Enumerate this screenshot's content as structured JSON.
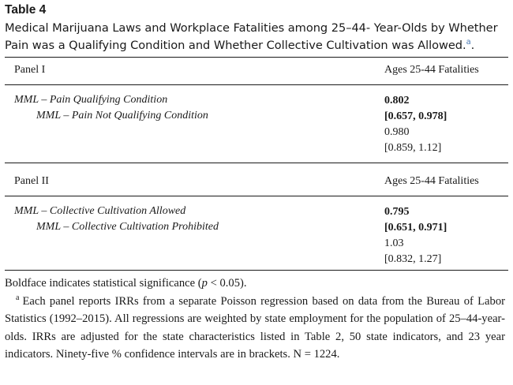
{
  "table": {
    "label": "Table 4",
    "caption_line1": "Medical Marijuana Laws and Workplace Fatalities among 25–44- Year-Olds by Whether",
    "caption_line2": "Pain was a Qualifying Condition and Whether Collective Cultivation was Allowed.",
    "caption_note_marker": "a",
    "caption_end": "."
  },
  "panels": [
    {
      "label": "Panel I",
      "column_header": "Ages 25-44 Fatalities",
      "row1_label": "MML – Pain Qualifying Condition",
      "row2_label": "MML – Pain Not Qualifying Condition",
      "row1_estimate": "0.802",
      "row1_ci": "[0.657, 0.978]",
      "row2_estimate": "0.980",
      "row2_ci": "[0.859, 1.12]"
    },
    {
      "label": "Panel II",
      "column_header": "Ages 25-44 Fatalities",
      "row1_label": "MML – Collective Cultivation Allowed",
      "row2_label": "MML – Collective Cultivation Prohibited",
      "row1_estimate": "0.795",
      "row1_ci": "[0.651, 0.971]",
      "row2_estimate": "1.03",
      "row2_ci": "[0.832, 1.27]"
    }
  ],
  "notes": {
    "bold_pre": "Boldface indicates statistical significance (",
    "bold_p": "p",
    "bold_post": " < 0.05).",
    "footnote_marker": "a",
    "footnote_text": "Each panel reports IRRs from a separate Poisson regression based on data from the Bureau of Labor Statistics (1992–2015). All regressions are weighted by state employment for the population of 25–44-year-olds. IRRs are adjusted for the state characteristics listed in Table 2, 50 state indicators, and 23 year indicators. Ninety-five % confidence intervals are in brackets. N = 1224."
  }
}
